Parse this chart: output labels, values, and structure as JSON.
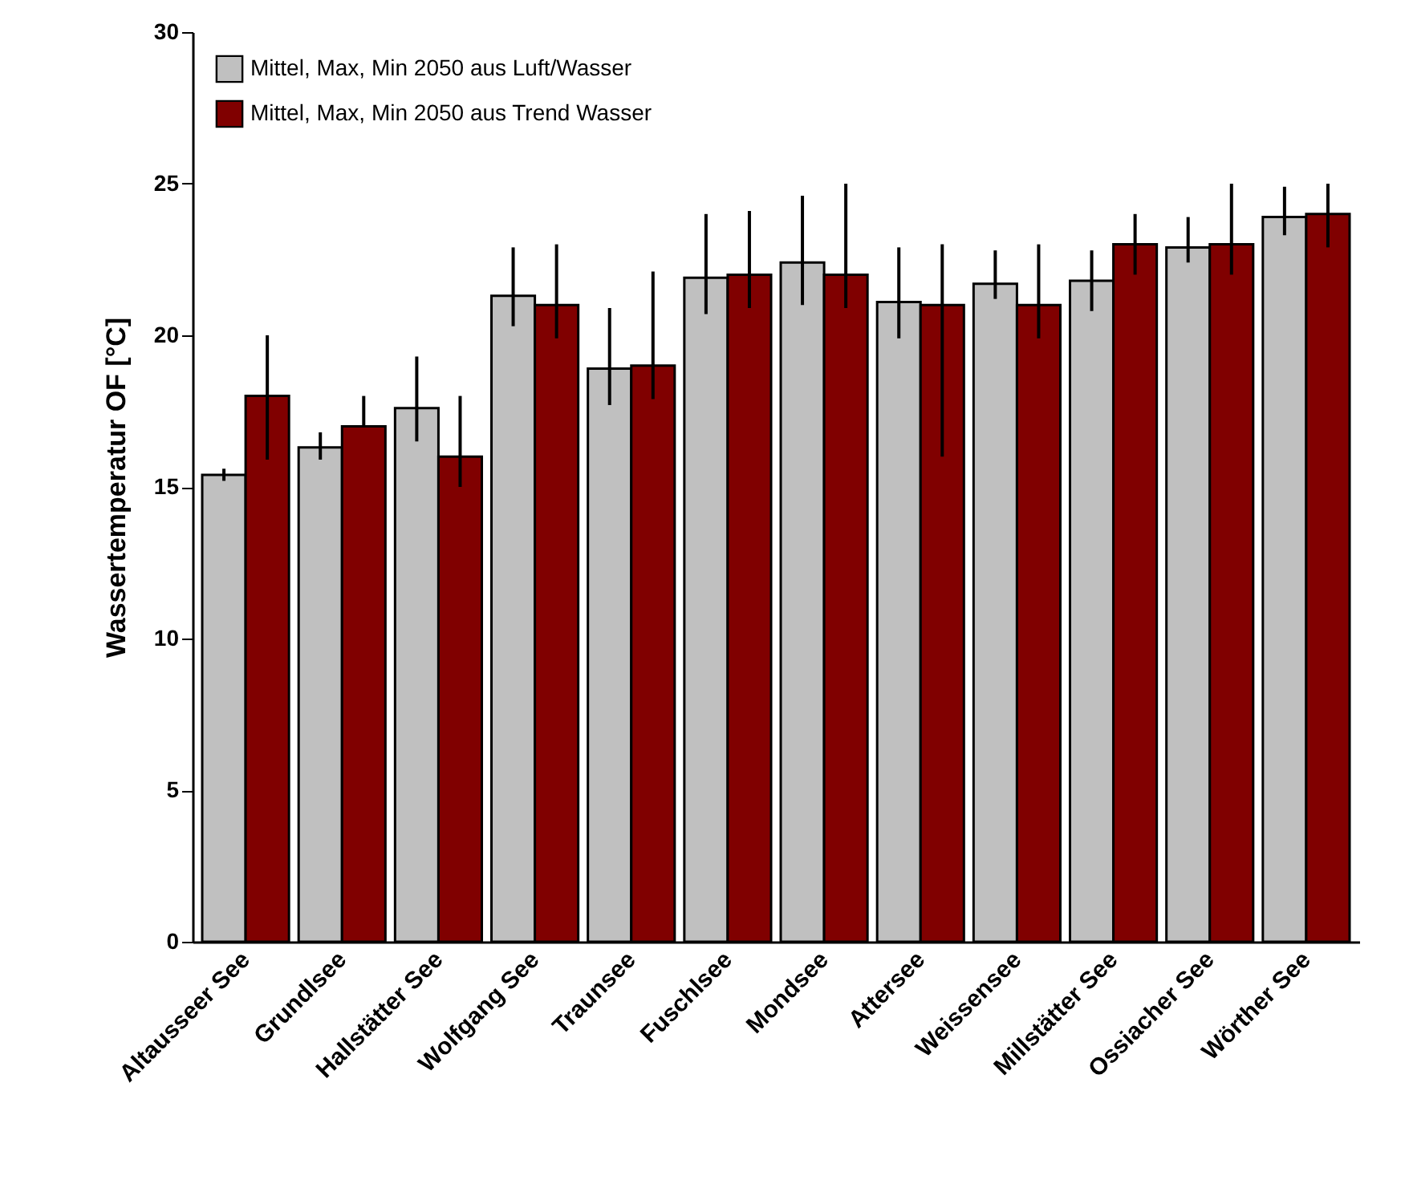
{
  "chart_data": {
    "type": "bar",
    "ylabel": "Wassertemperatur OF [°C]",
    "categories": [
      "Altausseer See",
      "Grundlsee",
      "Hallstätter See",
      "Wolfgang See",
      "Traunsee",
      "Fuschlsee",
      "Mondsee",
      "Attersee",
      "Weissensee",
      "Millstätter See",
      "Ossiacher See",
      "Wörther See"
    ],
    "series": [
      {
        "name": "Mittel, Max, Min 2050 aus Luft/Wasser",
        "color": "#c0c0c0",
        "values": [
          15.4,
          16.3,
          17.6,
          21.3,
          18.9,
          21.9,
          22.4,
          21.1,
          21.7,
          21.8,
          22.9,
          23.9
        ],
        "errors": [
          [
            15.2,
            15.6
          ],
          [
            15.9,
            16.8
          ],
          [
            16.5,
            19.3
          ],
          [
            20.3,
            22.9
          ],
          [
            17.7,
            20.9
          ],
          [
            20.7,
            24.0
          ],
          [
            21.0,
            24.6
          ],
          [
            19.9,
            22.9
          ],
          [
            21.2,
            22.8
          ],
          [
            20.8,
            22.8
          ],
          [
            22.4,
            23.9
          ],
          [
            23.3,
            24.9
          ]
        ]
      },
      {
        "name": "Mittel, Max, Min 2050 aus Trend Wasser",
        "color": "#800000",
        "values": [
          18.0,
          17.0,
          16.0,
          21.0,
          19.0,
          22.0,
          22.0,
          21.0,
          21.0,
          23.0,
          23.0,
          24.0
        ],
        "errors": [
          [
            15.9,
            20.0
          ],
          [
            17.0,
            18.0
          ],
          [
            15.0,
            18.0
          ],
          [
            19.9,
            23.0
          ],
          [
            17.9,
            22.1
          ],
          [
            20.9,
            24.1
          ],
          [
            20.9,
            25.0
          ],
          [
            16.0,
            23.0
          ],
          [
            19.9,
            23.0
          ],
          [
            22.0,
            24.0
          ],
          [
            22.0,
            25.0
          ],
          [
            22.9,
            25.0
          ]
        ]
      }
    ],
    "ylim": [
      0,
      30
    ],
    "yticks": [
      0,
      5,
      10,
      15,
      20,
      25,
      30
    ],
    "legend": "top left"
  }
}
